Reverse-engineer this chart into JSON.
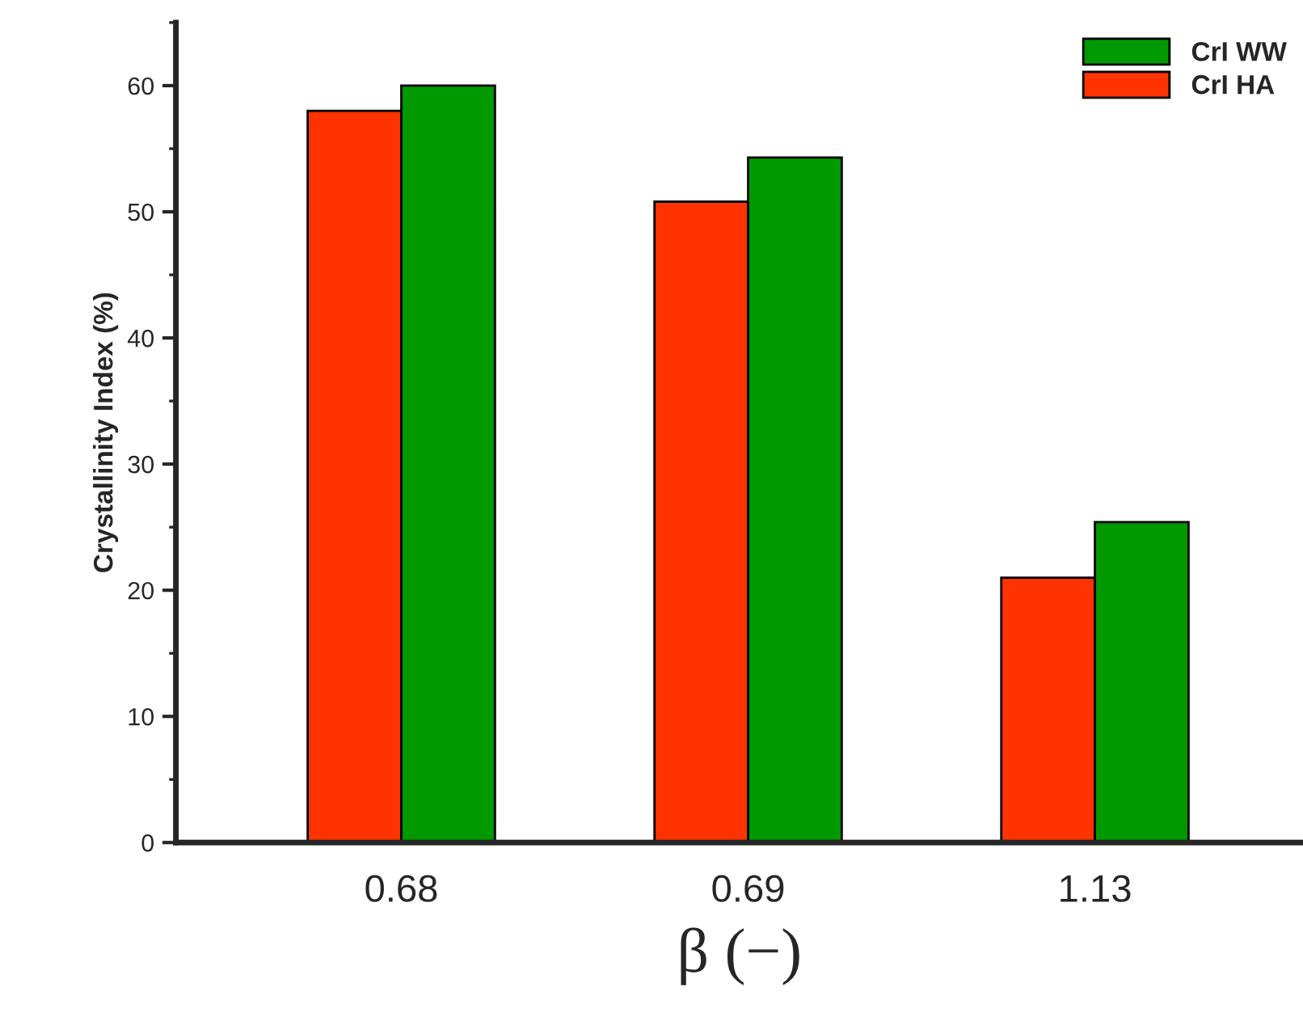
{
  "chart_data": {
    "type": "bar",
    "xlabel": "β (−)",
    "ylabel": "Crystallinity Index (%)",
    "categories": [
      "0.68",
      "0.69",
      "1.13"
    ],
    "series": [
      {
        "name": "CrI HA",
        "color": "#ff3300",
        "values": [
          58.0,
          50.8,
          21.0
        ]
      },
      {
        "name": "CrI WW",
        "color": "#009900",
        "values": [
          60.0,
          54.3,
          25.4
        ]
      }
    ],
    "ylim": [
      0,
      65
    ],
    "yticks": [
      0,
      10,
      20,
      30,
      40,
      50,
      60
    ],
    "grid": false,
    "legend": "top right"
  }
}
